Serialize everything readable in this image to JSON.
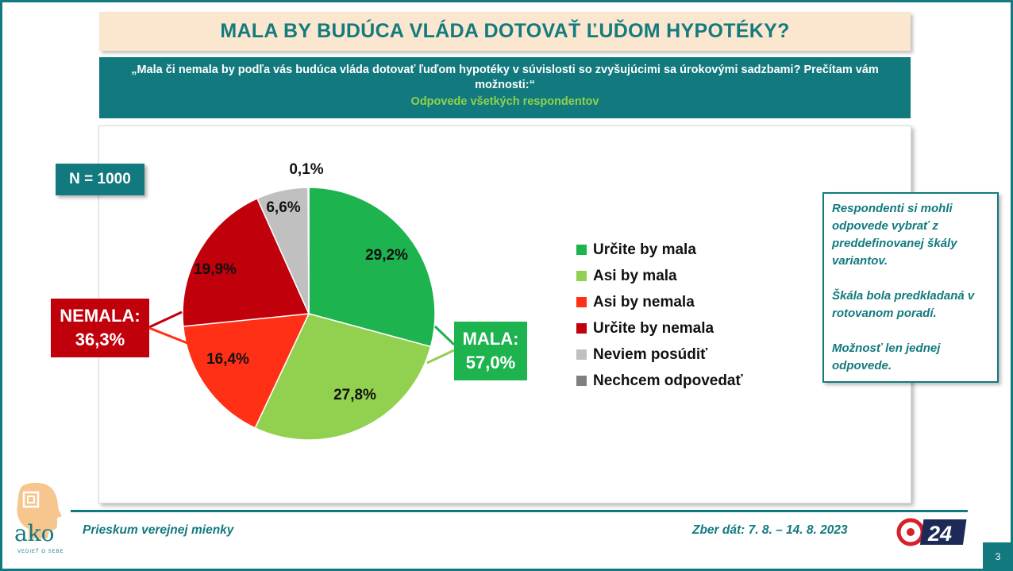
{
  "title": "MALA BY BUDÚCA VLÁDA DOTOVAŤ ĽUĎOM HYPOTÉKY?",
  "question": "„Mala či nemala by podľa vás budúca vláda dotovať ľuďom hypotéky v súvislosti so zvyšujúcimi sa úrokovými sadzbami? Prečítam vám možnosti:“",
  "subtitle": "Odpovede všetkých respondentov",
  "sample": "N = 1000",
  "groups": {
    "nemala": {
      "label": "NEMALA:",
      "value": "36,3%",
      "color": "#c0000b"
    },
    "mala": {
      "label": "MALA:",
      "value": "57,0%",
      "color": "#1db34f"
    }
  },
  "chart_data": {
    "type": "pie",
    "slices": [
      {
        "name": "Určite by mala",
        "value": 29.2,
        "label": "29,2%",
        "color": "#1db34f"
      },
      {
        "name": "Asi by mala",
        "value": 27.8,
        "label": "27,8%",
        "color": "#92d050"
      },
      {
        "name": "Asi by nemala",
        "value": 16.4,
        "label": "16,4%",
        "color": "#ff3015"
      },
      {
        "name": "Určite by nemala",
        "value": 19.9,
        "label": "19,9%",
        "color": "#c0000b"
      },
      {
        "name": "Neviem posúdiť",
        "value": 6.6,
        "label": "6,6%",
        "color": "#c0c0c0"
      },
      {
        "name": "Nechcem odpovedať",
        "value": 0.1,
        "label": "0,1%",
        "color": "#808080"
      }
    ],
    "legend": "right"
  },
  "note": {
    "p1": "Respondenti si mohli odpovede vybrať z preddefinovanej škály variantov.",
    "p2": "Škála bola predkladaná v rotovanom poradí.",
    "p3": "Možnosť len jednej odpovede."
  },
  "footer": {
    "left": "Prieskum verejnej mienky",
    "right": "Zber dát: 7. 8. – 14. 8. 2023",
    "page": "3"
  },
  "logo": {
    "name": "ako",
    "tagline": "VEDIEŤ O SEBE"
  },
  "brand": {
    "name": "24",
    "color": "#d6202a"
  },
  "colors": {
    "teal": "#127a7e",
    "title_bg": "#fbe6cf",
    "green_accent": "#8fd24b"
  }
}
